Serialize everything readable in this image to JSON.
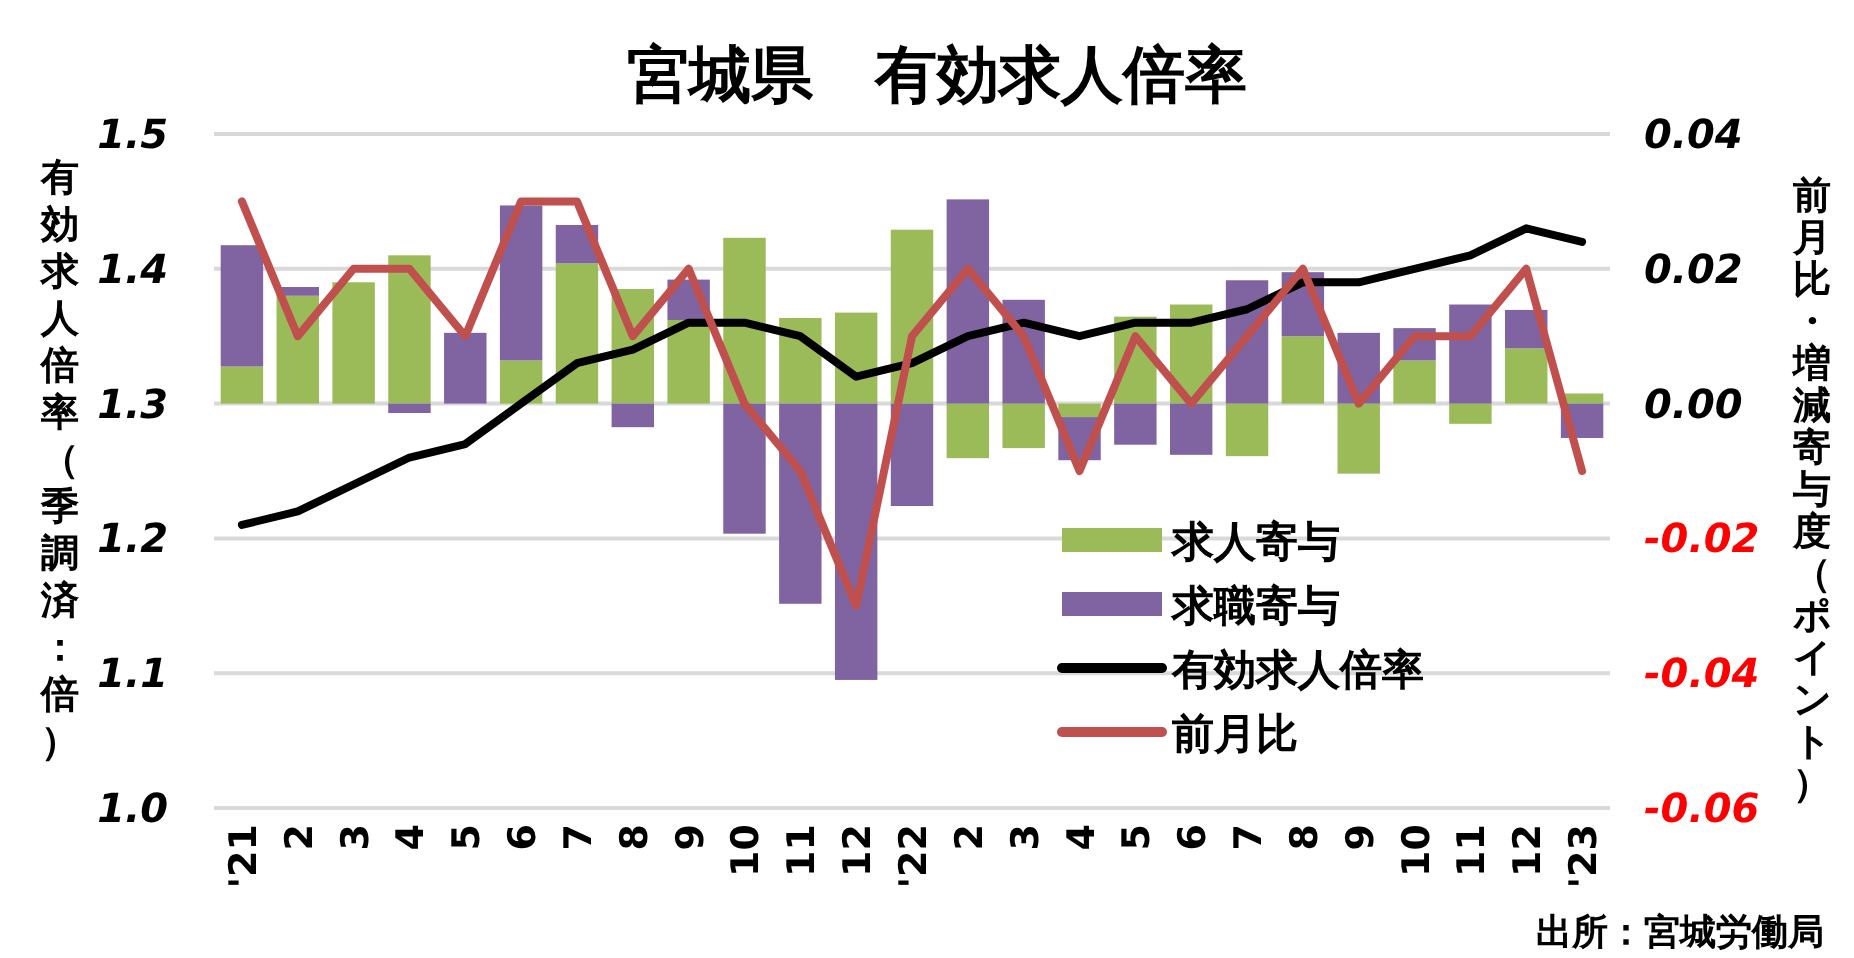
{
  "chart_data": {
    "type": "bar",
    "title": "宮城県　有効求人倍率",
    "ylabel": "有効求人倍率（季調済：倍）",
    "y2label": "前月比・増減寄与度（ポイント）",
    "annotations": [
      "出所：宮城労働局"
    ],
    "categories": [
      "'21",
      "2",
      "3",
      "4",
      "5",
      "6",
      "7",
      "8",
      "9",
      "10",
      "11",
      "12",
      "'22",
      "2",
      "3",
      "4",
      "5",
      "6",
      "7",
      "8",
      "9",
      "10",
      "11",
      "12",
      "'23"
    ],
    "stacked": true,
    "grid": "y",
    "legend": "bottom",
    "ylim": [
      1.0,
      1.5
    ],
    "yticks": [
      {
        "value": 1.0,
        "label": "1.0"
      },
      1.1,
      1.2,
      1.3,
      1.4,
      1.5
    ],
    "y2lim": [
      -0.06,
      0.04
    ],
    "y2ticks": [
      {
        "value": -0.06,
        "label": "-0.06"
      },
      {
        "value": -0.04,
        "label": "-0.04"
      },
      {
        "value": -0.02,
        "label": "-0.02"
      },
      {
        "value": 0,
        "label": "0.00"
      },
      {
        "value": 0.02,
        "label": "0.02"
      },
      {
        "value": 0.04,
        "label": "0.04"
      }
    ],
    "series": [
      {
        "name": "求人寄与",
        "type": "bar",
        "axis": "y2",
        "color": "#9bbb59",
        "values": [
          0.0055,
          0.016,
          0.018,
          0.022,
          0,
          0.0064,
          0.0208,
          0.017,
          0.0124,
          0.0246,
          0.0127,
          0.0135,
          0.0258,
          -0.0081,
          -0.0066,
          -0.002,
          0.0129,
          0.0147,
          -0.0078,
          0.01,
          -0.0104,
          0.0064,
          -0.003,
          0.0082,
          0.0015
        ]
      },
      {
        "name": "求職寄与",
        "type": "bar",
        "axis": "y2",
        "color": "#8064a2",
        "values": [
          0.018,
          0.0013,
          0,
          -0.0014,
          0.0105,
          0.023,
          0.0057,
          -0.0035,
          0.006,
          -0.0193,
          -0.0297,
          -0.041,
          -0.0152,
          0.0303,
          0.0154,
          -0.0064,
          -0.0061,
          -0.0076,
          0.0183,
          0.0095,
          0.0105,
          0.0048,
          0.0147,
          0.0057,
          -0.0051
        ]
      },
      {
        "name": "有効求人倍率",
        "type": "line",
        "axis": "y",
        "color": "#000000",
        "values": [
          1.21,
          1.22,
          1.24,
          1.26,
          1.27,
          1.3,
          1.33,
          1.34,
          1.36,
          1.36,
          1.35,
          1.32,
          1.33,
          1.35,
          1.36,
          1.35,
          1.36,
          1.36,
          1.37,
          1.39,
          1.39,
          1.4,
          1.41,
          1.43,
          1.42
        ]
      },
      {
        "name": "前月比",
        "type": "line",
        "axis": "y2",
        "color": "#c0504d",
        "values": [
          0.03,
          0.01,
          0.02,
          0.02,
          0.01,
          0.03,
          0.03,
          0.01,
          0.02,
          0,
          -0.01,
          -0.03,
          0.01,
          0.02,
          0.01,
          -0.01,
          0.01,
          0,
          0.01,
          0.02,
          0,
          0.01,
          0.01,
          0.02,
          -0.01
        ]
      }
    ]
  }
}
